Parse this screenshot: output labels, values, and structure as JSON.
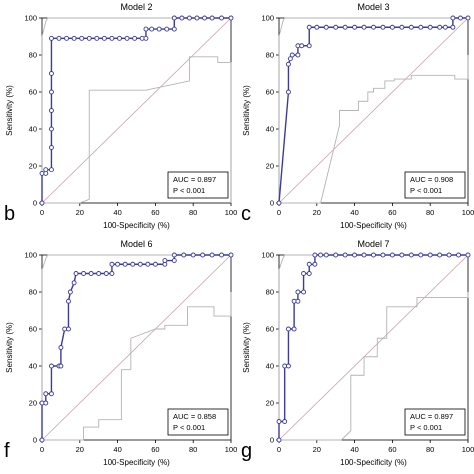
{
  "chart_data": [
    {
      "type": "line",
      "panel_letter": "b",
      "title": "Model 2",
      "xlabel": "100-Specificity (%)",
      "ylabel": "Sensitivity (%)",
      "xlim": [
        0,
        100
      ],
      "ylim": [
        0,
        100
      ],
      "x_ticks": [
        "0",
        "20",
        "40",
        "60",
        "80",
        "100"
      ],
      "y_ticks": [
        "0",
        "20",
        "40",
        "60",
        "80",
        "100"
      ],
      "annotation": [
        "AUC = 0.897",
        "P < 0.001"
      ],
      "grid": false,
      "series": [
        {
          "role": "roc",
          "x": [
            0,
            0,
            2,
            2,
            5,
            5,
            5,
            5,
            5,
            5,
            5,
            9,
            13,
            17,
            21,
            25,
            29,
            33,
            37,
            41,
            45,
            49,
            53,
            55,
            55,
            58,
            62,
            66,
            70,
            70,
            74,
            78,
            82,
            86,
            90,
            95,
            100
          ],
          "y": [
            0,
            16,
            16,
            18,
            18,
            30,
            40,
            50,
            60,
            70,
            89,
            89,
            89,
            89,
            89,
            89,
            89,
            89,
            89,
            89,
            89,
            89,
            89,
            89,
            94,
            94,
            94,
            94,
            94,
            100,
            100,
            100,
            100,
            100,
            100,
            100,
            100
          ]
        },
        {
          "role": "upper_ci",
          "x": [
            0,
            0,
            2,
            3,
            100
          ],
          "y": [
            0,
            90,
            98,
            100,
            100
          ]
        },
        {
          "role": "lower_ci",
          "x": [
            0,
            20,
            25,
            25,
            55,
            78,
            78,
            93,
            93,
            100,
            100
          ],
          "y": [
            0,
            0,
            2,
            61,
            61,
            66,
            79,
            79,
            76,
            76,
            0
          ]
        },
        {
          "role": "reference",
          "x": [
            0,
            100
          ],
          "y": [
            0,
            100
          ]
        }
      ]
    },
    {
      "type": "line",
      "panel_letter": "c",
      "title": "Model 3",
      "xlabel": "100-Specificity (%)",
      "ylabel": "Sensitivity (%)",
      "xlim": [
        0,
        100
      ],
      "ylim": [
        0,
        100
      ],
      "x_ticks": [
        "0",
        "20",
        "40",
        "60",
        "80",
        "100"
      ],
      "y_ticks": [
        "0",
        "20",
        "40",
        "60",
        "80",
        "100"
      ],
      "annotation": [
        "AUC = 0.908",
        "P < 0.001"
      ],
      "grid": false,
      "series": [
        {
          "role": "roc",
          "x": [
            0,
            5,
            5,
            6,
            7,
            10,
            10,
            12,
            16,
            16,
            20,
            25,
            30,
            35,
            40,
            45,
            50,
            55,
            60,
            65,
            70,
            75,
            80,
            85,
            88,
            92,
            92,
            96,
            100
          ],
          "y": [
            0,
            60,
            75,
            78,
            80,
            80,
            85,
            85,
            85,
            95,
            95,
            95,
            95,
            95,
            95,
            95,
            95,
            95,
            95,
            95,
            95,
            95,
            95,
            95,
            95,
            95,
            100,
            100,
            100
          ]
        },
        {
          "role": "upper_ci",
          "x": [
            0,
            0,
            2,
            3,
            100
          ],
          "y": [
            0,
            90,
            98,
            100,
            100
          ]
        },
        {
          "role": "lower_ci",
          "x": [
            0,
            22,
            32,
            32,
            42,
            42,
            47,
            47,
            50,
            50,
            56,
            56,
            61,
            61,
            70,
            70,
            93,
            93,
            100,
            100
          ],
          "y": [
            0,
            0,
            42,
            50,
            50,
            55,
            55,
            60,
            60,
            62,
            62,
            66,
            66,
            67,
            67,
            69,
            69,
            67,
            67,
            80
          ]
        },
        {
          "role": "reference",
          "x": [
            0,
            100
          ],
          "y": [
            0,
            100
          ]
        }
      ]
    },
    {
      "type": "line",
      "panel_letter": "f",
      "title": "Model 6",
      "xlabel": "100-Specificity (%)",
      "ylabel": "Sensitivity (%)",
      "xlim": [
        0,
        100
      ],
      "ylim": [
        0,
        100
      ],
      "x_ticks": [
        "0",
        "20",
        "40",
        "60",
        "80",
        "100"
      ],
      "y_ticks": [
        "0",
        "20",
        "40",
        "60",
        "80",
        "100"
      ],
      "annotation": [
        "AUC = 0.858",
        "P < 0.001"
      ],
      "grid": false,
      "series": [
        {
          "role": "roc",
          "x": [
            0,
            0,
            2,
            2,
            5,
            5,
            9,
            10,
            10,
            12,
            14,
            14,
            15,
            17,
            18,
            22,
            26,
            30,
            34,
            37,
            37,
            40,
            44,
            48,
            52,
            56,
            60,
            65,
            65,
            70,
            70,
            75,
            80,
            85,
            90,
            95,
            100
          ],
          "y": [
            0,
            20,
            20,
            25,
            25,
            40,
            40,
            40,
            50,
            60,
            60,
            75,
            80,
            85,
            90,
            90,
            90,
            90,
            90,
            90,
            95,
            95,
            95,
            95,
            95,
            95,
            95,
            95,
            97,
            97,
            100,
            100,
            100,
            100,
            100,
            100,
            100
          ]
        },
        {
          "role": "upper_ci",
          "x": [
            0,
            0,
            2,
            3,
            100
          ],
          "y": [
            0,
            92,
            98,
            100,
            100
          ]
        },
        {
          "role": "lower_ci",
          "x": [
            0,
            20,
            22,
            22,
            30,
            30,
            42,
            42,
            47,
            47,
            60,
            65,
            65,
            77,
            77,
            91,
            91,
            100,
            100
          ],
          "y": [
            0,
            0,
            0,
            7,
            7,
            11,
            11,
            38,
            38,
            55,
            60,
            60,
            62,
            62,
            72,
            72,
            67,
            67,
            80
          ]
        },
        {
          "role": "reference",
          "x": [
            0,
            100
          ],
          "y": [
            0,
            100
          ]
        }
      ]
    },
    {
      "type": "line",
      "panel_letter": "g",
      "title": "Model 7",
      "xlabel": "100-Specificity (%)",
      "ylabel": "Sensitivity (%)",
      "xlim": [
        0,
        100
      ],
      "ylim": [
        0,
        100
      ],
      "x_ticks": [
        "0",
        "20",
        "40",
        "60",
        "80",
        "100"
      ],
      "y_ticks": [
        "0",
        "20",
        "40",
        "60",
        "80",
        "100"
      ],
      "annotation": [
        "AUC = 0.897",
        "P < 0.001"
      ],
      "grid": false,
      "series": [
        {
          "role": "roc",
          "x": [
            0,
            0,
            3,
            3,
            5,
            5,
            8,
            8,
            10,
            10,
            13,
            13,
            16,
            16,
            19,
            19,
            22,
            25,
            30,
            35,
            40,
            45,
            50,
            55,
            60,
            65,
            70,
            75,
            80,
            85,
            90,
            95,
            100
          ],
          "y": [
            0,
            10,
            10,
            40,
            40,
            60,
            60,
            75,
            75,
            80,
            80,
            90,
            90,
            95,
            95,
            100,
            100,
            100,
            100,
            100,
            100,
            100,
            100,
            100,
            100,
            100,
            100,
            100,
            100,
            100,
            100,
            100,
            100
          ]
        },
        {
          "role": "upper_ci",
          "x": [
            0,
            0,
            2,
            3,
            100
          ],
          "y": [
            0,
            92,
            98,
            100,
            100
          ]
        },
        {
          "role": "lower_ci",
          "x": [
            0,
            33,
            38,
            38,
            45,
            45,
            52,
            52,
            57,
            57,
            73,
            73,
            100,
            100
          ],
          "y": [
            0,
            0,
            5,
            35,
            35,
            45,
            45,
            55,
            55,
            72,
            72,
            77,
            77,
            80
          ]
        },
        {
          "role": "reference",
          "x": [
            0,
            100
          ],
          "y": [
            0,
            100
          ]
        }
      ]
    }
  ],
  "colors": {
    "roc_line": "#3b3b9c",
    "roc_marker_fill": "#ffffff",
    "ci_line": "#b3b3b8",
    "reference_line": "#c9a2a8",
    "axis": "#000000",
    "text": "#000000"
  }
}
